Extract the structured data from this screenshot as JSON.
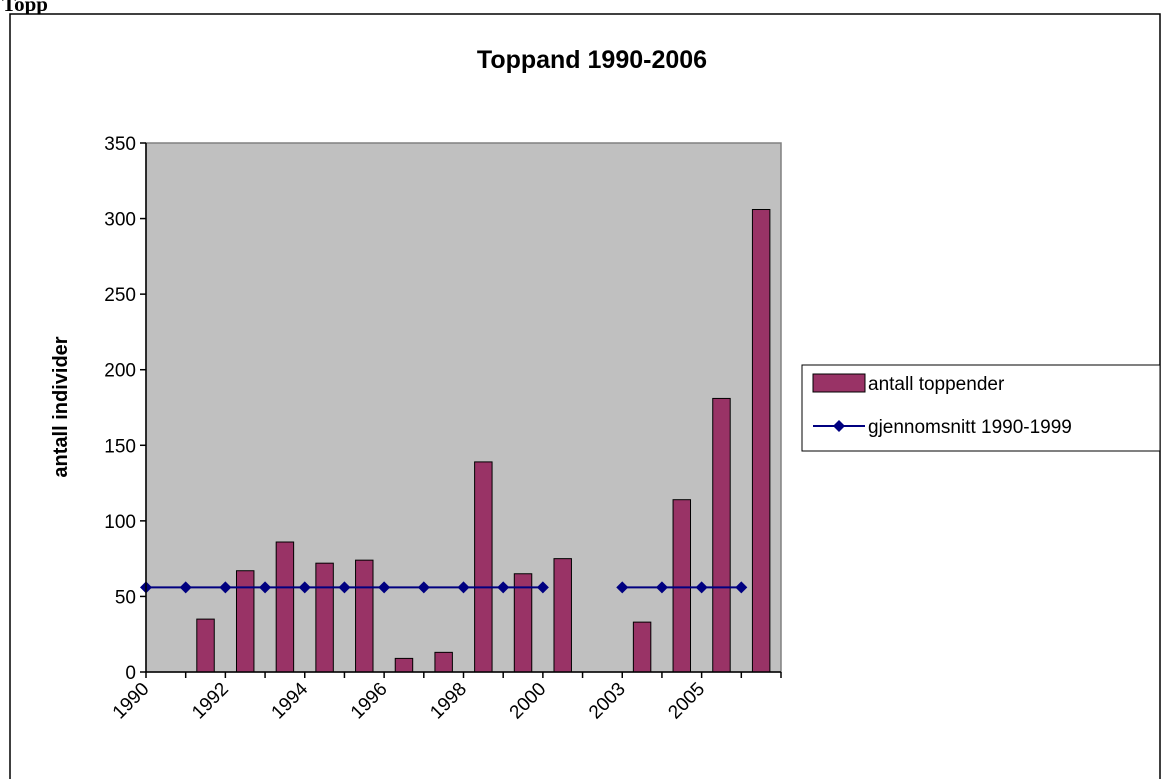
{
  "page": {
    "heading": "Topp"
  },
  "colors": {
    "plot_background": "#c0c0c0",
    "bar_fill": "#993366",
    "line_color": "#000080",
    "border": "#000000"
  },
  "chart_data": {
    "type": "bar",
    "title": "Toppand 1990-2006",
    "xlabel": "",
    "ylabel": "antall individer",
    "ylim": [
      0,
      350
    ],
    "yticks": [
      0,
      50,
      100,
      150,
      200,
      250,
      300,
      350
    ],
    "categories": [
      "1990",
      "1991",
      "1992",
      "1993",
      "1994",
      "1995",
      "1996",
      "1997",
      "1998",
      "1999",
      "2000",
      "2002",
      "2003",
      "2004",
      "2005",
      "2006"
    ],
    "x_tick_labels": [
      "1990",
      "1992",
      "1994",
      "1996",
      "1998",
      "2000",
      "2003",
      "2005"
    ],
    "grid": false,
    "legend_position": "right",
    "series": [
      {
        "name": "antall toppender",
        "kind": "bar",
        "values": [
          null,
          35,
          67,
          86,
          72,
          74,
          9,
          13,
          139,
          65,
          75,
          null,
          33,
          114,
          181,
          306
        ]
      },
      {
        "name": "gjennomsnitt 1990-1999",
        "kind": "line",
        "marker": "diamond",
        "values": [
          56,
          56,
          56,
          56,
          56,
          56,
          56,
          56,
          56,
          56,
          56,
          null,
          56,
          56,
          56,
          56
        ]
      }
    ]
  }
}
